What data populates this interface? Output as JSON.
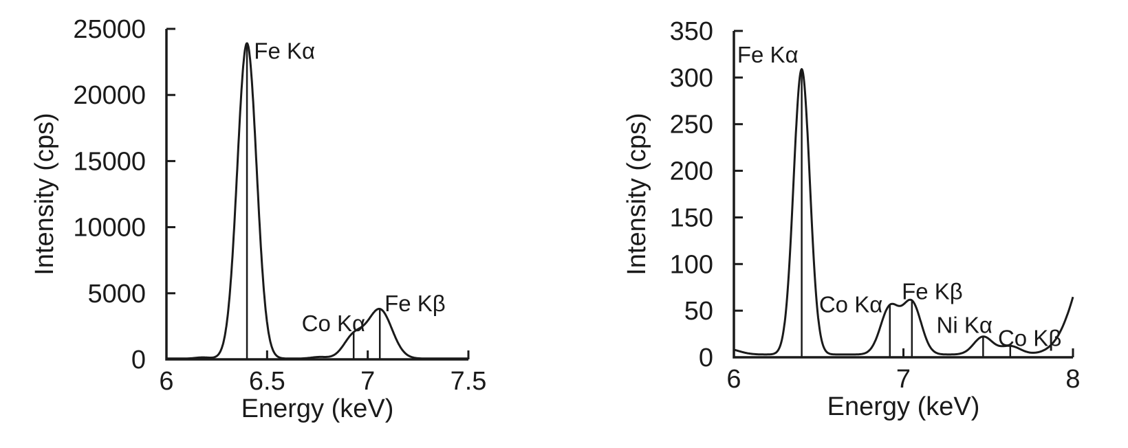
{
  "figure": {
    "background_color": "#ffffff",
    "line_color": "#1a1a1a",
    "text_color": "#1a1a1a"
  },
  "chart_data": [
    {
      "type": "line",
      "title": "",
      "xlabel": "Energy (keV)",
      "ylabel": "Intensity (cps)",
      "xlim": [
        6,
        7.5
      ],
      "ylim": [
        0,
        25000
      ],
      "grid": false,
      "legend": null,
      "xticks": [
        {
          "value": 6,
          "label": "6"
        },
        {
          "value": 6.5,
          "label": "6.5"
        },
        {
          "value": 7,
          "label": "7"
        },
        {
          "value": 7.5,
          "label": "7.5"
        }
      ],
      "yticks": [
        {
          "value": 0,
          "label": "0"
        },
        {
          "value": 5000,
          "label": "5000"
        },
        {
          "value": 10000,
          "label": "10000"
        },
        {
          "value": 15000,
          "label": "15000"
        },
        {
          "value": 20000,
          "label": "20000"
        },
        {
          "value": 25000,
          "label": "25000"
        }
      ],
      "baseline_cps": 60,
      "peaks": [
        {
          "name": "Fe Kα",
          "center_keV": 6.4,
          "height_cps": 23850,
          "sigma_keV": 0.048,
          "marker_line": true
        },
        {
          "name": "background bump",
          "center_keV": 6.18,
          "height_cps": 90,
          "sigma_keV": 0.035,
          "marker_line": false
        },
        {
          "name": "background bump",
          "center_keV": 6.76,
          "height_cps": 120,
          "sigma_keV": 0.04,
          "marker_line": false
        },
        {
          "name": "Co Kα",
          "center_keV": 6.93,
          "height_cps": 1650,
          "sigma_keV": 0.05,
          "marker_line": true
        },
        {
          "name": "Fe Kβ",
          "center_keV": 7.06,
          "height_cps": 3700,
          "sigma_keV": 0.06,
          "marker_line": true
        }
      ],
      "annotations": [
        {
          "text": "Fe Kα",
          "x_keV": 6.435,
          "y_cps": 23350,
          "anchor": "start"
        },
        {
          "text": "Co Kα",
          "x_keV": 6.83,
          "y_cps": 2750,
          "anchor": "middle"
        },
        {
          "text": "Fe Kβ",
          "x_keV": 7.235,
          "y_cps": 4250,
          "anchor": "middle"
        }
      ]
    },
    {
      "type": "line",
      "title": "",
      "xlabel": "Energy (keV)",
      "ylabel": "Intensity (cps)",
      "xlim": [
        6,
        8
      ],
      "ylim": [
        0,
        350
      ],
      "grid": false,
      "legend": null,
      "xticks": [
        {
          "value": 6,
          "label": "6"
        },
        {
          "value": 7,
          "label": "7"
        },
        {
          "value": 8,
          "label": "8"
        }
      ],
      "yticks": [
        {
          "value": 0,
          "label": "0"
        },
        {
          "value": 50,
          "label": "50"
        },
        {
          "value": 100,
          "label": "100"
        },
        {
          "value": 150,
          "label": "150"
        },
        {
          "value": 200,
          "label": "200"
        },
        {
          "value": 250,
          "label": "250"
        },
        {
          "value": 300,
          "label": "300"
        },
        {
          "value": 350,
          "label": "350"
        }
      ],
      "baseline_cps": 3,
      "peaks": [
        {
          "name": "low-energy edge bump",
          "center_keV": 5.96,
          "height_cps": 6,
          "sigma_keV": 0.07,
          "marker_line": false
        },
        {
          "name": "Fe Kα",
          "center_keV": 6.4,
          "height_cps": 306,
          "sigma_keV": 0.048,
          "marker_line": true
        },
        {
          "name": "Co Kα",
          "center_keV": 6.92,
          "height_cps": 50,
          "sigma_keV": 0.055,
          "marker_line": true
        },
        {
          "name": "Fe Kβ",
          "center_keV": 7.05,
          "height_cps": 55,
          "sigma_keV": 0.055,
          "marker_line": true
        },
        {
          "name": "Ni Kα",
          "center_keV": 7.47,
          "height_cps": 19,
          "sigma_keV": 0.055,
          "marker_line": true
        },
        {
          "name": "Co Kβ",
          "center_keV": 7.63,
          "height_cps": 9,
          "sigma_keV": 0.06,
          "marker_line": true
        },
        {
          "name": "high-energy rise",
          "center_keV": 8.17,
          "height_cps": 145,
          "sigma_keV": 0.13,
          "marker_line": false
        }
      ],
      "annotations": [
        {
          "text": "Fe Kα",
          "x_keV": 6.38,
          "y_cps": 325,
          "anchor": "end"
        },
        {
          "text": "Co Kα",
          "x_keV": 6.69,
          "y_cps": 57,
          "anchor": "middle"
        },
        {
          "text": "Fe Kβ",
          "x_keV": 7.17,
          "y_cps": 71,
          "anchor": "middle"
        },
        {
          "text": "Ni Kα",
          "x_keV": 7.36,
          "y_cps": 35,
          "anchor": "middle"
        },
        {
          "text": "Co Kβ",
          "x_keV": 7.745,
          "y_cps": 21,
          "anchor": "middle"
        }
      ]
    }
  ]
}
